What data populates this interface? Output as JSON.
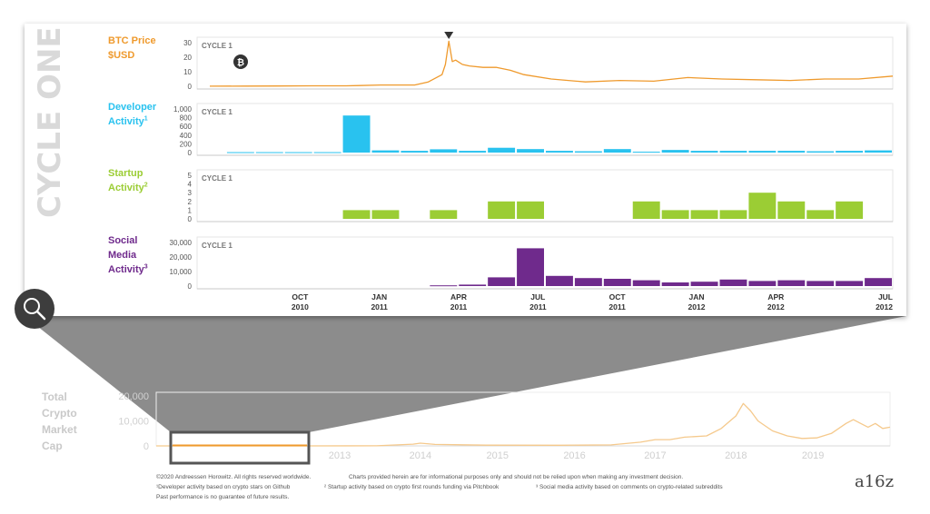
{
  "panel_title": "CYCLE ONE",
  "panel_tag": "CYCLE 1",
  "bitcoin_glyph": "₿",
  "colors": {
    "btc": "#ef9a2d",
    "dev": "#29c2ef",
    "startup": "#9bcd34",
    "social": "#6f2a8c",
    "gray": "#a9a9a9",
    "cap": "#f5c98c"
  },
  "chart_data": [
    {
      "type": "line",
      "name": "btc",
      "label_lines": [
        "BTC Price",
        "$USD"
      ],
      "sup": "",
      "yticks": [
        "30",
        "20",
        "10",
        "0"
      ],
      "ylim": [
        0,
        30
      ],
      "x": [
        0,
        0.05,
        0.1,
        0.15,
        0.2,
        0.22,
        0.25,
        0.3,
        0.32,
        0.34,
        0.345,
        0.35,
        0.355,
        0.36,
        0.37,
        0.38,
        0.4,
        0.42,
        0.44,
        0.46,
        0.5,
        0.55,
        0.6,
        0.65,
        0.7,
        0.75,
        0.8,
        0.85,
        0.9,
        0.95,
        1.0
      ],
      "values": [
        0.07,
        0.1,
        0.2,
        0.3,
        0.3,
        0.5,
        0.9,
        0.9,
        3,
        8,
        15,
        31,
        17,
        18,
        15,
        14,
        13,
        13,
        11,
        8,
        5,
        3,
        4,
        3.5,
        6,
        5,
        4.5,
        4,
        5,
        5,
        7
      ]
    },
    {
      "type": "bar",
      "name": "dev",
      "label_lines": [
        "Developer",
        "Activity"
      ],
      "sup": "1",
      "yticks": [
        "1,000",
        "800",
        "600",
        "400",
        "200",
        "0"
      ],
      "ylim": [
        0,
        1000
      ],
      "values": [
        0,
        10,
        10,
        10,
        10,
        850,
        50,
        40,
        75,
        40,
        110,
        80,
        40,
        30,
        80,
        20,
        60,
        40,
        40,
        40,
        40,
        30,
        40,
        50
      ]
    },
    {
      "type": "bar",
      "name": "startup",
      "label_lines": [
        "Startup",
        "Activity"
      ],
      "sup": "2",
      "yticks": [
        "5",
        "4",
        "3",
        "2",
        "1",
        "0"
      ],
      "ylim": [
        0,
        5
      ],
      "values": [
        0,
        0,
        0,
        0,
        0,
        1,
        1,
        0,
        1,
        0,
        2,
        2,
        0,
        0,
        0,
        2,
        1,
        1,
        1,
        3,
        2,
        1,
        2,
        0
      ]
    },
    {
      "type": "bar",
      "name": "social",
      "label_lines": [
        "Social",
        "Media",
        "Activity"
      ],
      "sup": "3",
      "yticks": [
        "30,000",
        "20,000",
        "10,000",
        "0"
      ],
      "ylim": [
        0,
        30000
      ],
      "values": [
        0,
        0,
        0,
        0,
        0,
        0,
        0,
        0,
        500,
        1000,
        6000,
        26000,
        7000,
        5500,
        5000,
        4000,
        2500,
        3000,
        4500,
        3500,
        4000,
        3500,
        3500,
        5500
      ]
    }
  ],
  "xaxis": [
    {
      "month": "OCT",
      "year": "2010",
      "t": 0.148
    },
    {
      "month": "JAN",
      "year": "2011",
      "t": 0.262
    },
    {
      "month": "APR",
      "year": "2011",
      "t": 0.376
    },
    {
      "month": "JUL",
      "year": "2011",
      "t": 0.49
    },
    {
      "month": "OCT",
      "year": "2011",
      "t": 0.604
    },
    {
      "month": "JAN",
      "year": "2012",
      "t": 0.718
    },
    {
      "month": "APR",
      "year": "2012",
      "t": 0.832
    },
    {
      "month": "JUL",
      "year": "2012",
      "t": 0.946
    }
  ],
  "market_cap": {
    "label_lines": [
      "Total",
      "Crypto",
      "Market",
      "Cap"
    ],
    "yticks": [
      "20,000",
      "10,000",
      "0"
    ],
    "ylim": [
      0,
      20000
    ],
    "years": [
      "2013",
      "2014",
      "2015",
      "2016",
      "2017",
      "2018",
      "2019"
    ],
    "year_t": [
      0.25,
      0.36,
      0.465,
      0.57,
      0.68,
      0.79,
      0.895
    ],
    "x": [
      0,
      0.2,
      0.3,
      0.35,
      0.36,
      0.38,
      0.45,
      0.55,
      0.62,
      0.66,
      0.68,
      0.7,
      0.72,
      0.75,
      0.77,
      0.79,
      0.8,
      0.81,
      0.82,
      0.83,
      0.84,
      0.86,
      0.88,
      0.9,
      0.92,
      0.94,
      0.95,
      0.96,
      0.97,
      0.98,
      0.99,
      1.0
    ],
    "values": [
      0,
      10,
      50,
      700,
      1100,
      600,
      300,
      250,
      400,
      1500,
      2500,
      2500,
      3500,
      4000,
      7000,
      12000,
      17000,
      14000,
      10000,
      8000,
      6000,
      4000,
      3000,
      3200,
      5000,
      9000,
      10500,
      9000,
      7500,
      9000,
      7000,
      7500
    ]
  },
  "footer": {
    "copyright": "©2020 Andreessen Horowitz. All rights reserved worldwide.",
    "disclaimer": "Charts provided herein are for informational purposes only and should not be relied upon when making any investment decision.",
    "n1": "¹Developer activity based on crypto stars on Github",
    "n2": "² Startup activity based on crypto first rounds funding via Pitchbook",
    "n3": "³ Social media activity based on comments on crypto-related subreddits",
    "past": "Past performance is no guarantee of future results.",
    "logo": "a16z"
  }
}
